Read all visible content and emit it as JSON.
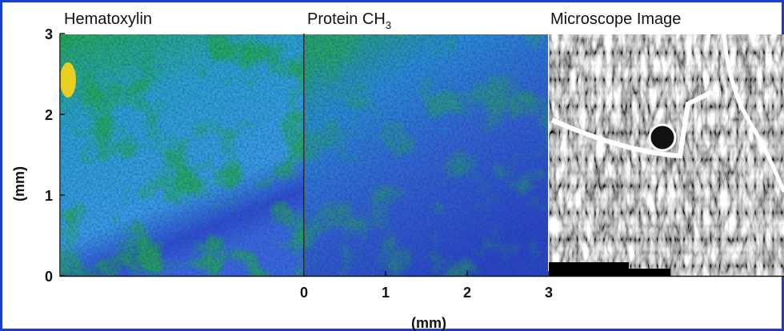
{
  "panels": [
    {
      "title": {
        "text": "Hematoxylin"
      }
    },
    {
      "title": {
        "text": "Protein CH",
        "subscript": "3"
      }
    },
    {
      "title": {
        "text": "Microscope Image"
      }
    }
  ],
  "y_axis": {
    "label": "(mm)",
    "ticks": [
      0,
      1,
      2,
      3
    ]
  },
  "x_axis": {
    "label": "(mm)",
    "ticks": [
      0,
      1,
      2,
      3
    ]
  }
}
